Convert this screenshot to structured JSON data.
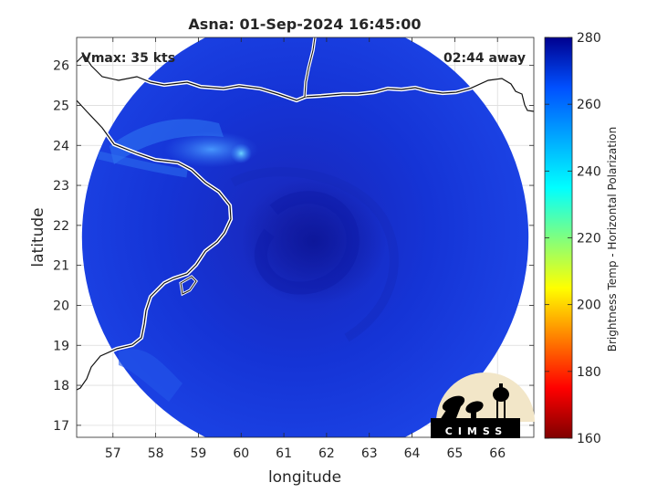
{
  "chart_data": {
    "type": "heatmap",
    "title": "Asna: 01-Sep-2024 16:45:00",
    "annotations": {
      "left": "Vmax: 35 kts",
      "right": "02:44 away"
    },
    "xlabel": "longitude",
    "ylabel": "latitude",
    "xlim": [
      56.15,
      66.85
    ],
    "ylim": [
      16.7,
      26.7
    ],
    "xticks": [
      57,
      58,
      59,
      60,
      61,
      62,
      63,
      64,
      65,
      66
    ],
    "yticks": [
      17,
      18,
      19,
      20,
      21,
      22,
      23,
      24,
      25,
      26
    ],
    "grid": true,
    "swath": {
      "center": [
        61.5,
        21.7
      ],
      "radius_deg": 5.4,
      "typical_value": 268
    },
    "features": [
      {
        "name": "storm core",
        "lon": 61.7,
        "lat": 21.6,
        "value": 276
      },
      {
        "name": "warm cloud band",
        "lon": 59.3,
        "lat": 23.9,
        "value": 250
      },
      {
        "name": "warm pixel",
        "lon": 60.0,
        "lat": 23.8,
        "value": 244
      },
      {
        "name": "coastal band",
        "lon": 57.8,
        "lat": 24.2,
        "value": 256
      },
      {
        "name": "land south",
        "lon": 58.6,
        "lat": 18.7,
        "value": 260
      }
    ],
    "colorbar": {
      "label": "Brightness Temp - Horizontal Polarization",
      "min": 160,
      "max": 280,
      "ticks": [
        160,
        180,
        200,
        220,
        240,
        260,
        280
      ],
      "colormap": [
        "#7f0000",
        "#ff0000",
        "#ffff00",
        "#00ffff",
        "#0050ff",
        "#00008f"
      ]
    }
  },
  "logo": {
    "text": "CIMSS"
  }
}
